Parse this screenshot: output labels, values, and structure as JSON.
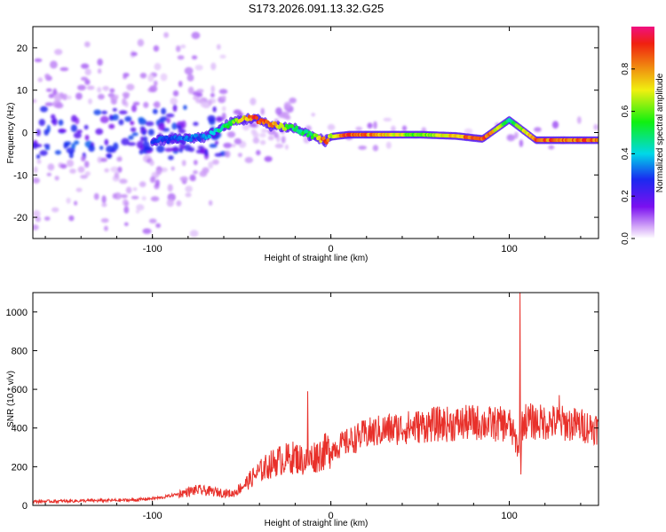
{
  "title": "S173.2026.091.13.32.G25",
  "chart_data": [
    {
      "type": "heatmap",
      "name": "spectrogram",
      "xlabel": "Height of straight line (km)",
      "ylabel": "Frequency (Hz)",
      "xlim": [
        -167,
        150
      ],
      "ylim": [
        -25,
        25
      ],
      "xticks": [
        -100,
        0,
        100
      ],
      "yticks": [
        -20,
        -10,
        0,
        10,
        20
      ],
      "colorbar": {
        "label": "Normalized spectral amplitude",
        "range": [
          0,
          1
        ],
        "ticks": [
          0.0,
          0.2,
          0.4,
          0.6,
          0.8
        ]
      },
      "signal_track": [
        {
          "x": -100,
          "freq": -2,
          "amp": 0.3
        },
        {
          "x": -70,
          "freq": -1,
          "amp": 0.35
        },
        {
          "x": -55,
          "freq": 2.5,
          "amp": 0.6
        },
        {
          "x": -43,
          "freq": 3.5,
          "amp": 0.95
        },
        {
          "x": -35,
          "freq": 1.8,
          "amp": 0.9
        },
        {
          "x": -20,
          "freq": 1,
          "amp": 0.5
        },
        {
          "x": -10,
          "freq": -1,
          "amp": 0.55
        },
        {
          "x": -3,
          "freq": -2,
          "amp": 0.95
        },
        {
          "x": 0,
          "freq": -1,
          "amp": 0.7
        },
        {
          "x": 10,
          "freq": -0.5,
          "amp": 0.95
        },
        {
          "x": 50,
          "freq": -0.5,
          "amp": 0.6
        },
        {
          "x": 70,
          "freq": -0.8,
          "amp": 0.8
        },
        {
          "x": 85,
          "freq": -1.5,
          "amp": 0.95
        },
        {
          "x": 100,
          "freq": 3,
          "amp": 0.5
        },
        {
          "x": 115,
          "freq": -1.8,
          "amp": 0.9
        },
        {
          "x": 150,
          "freq": -1.8,
          "amp": 0.9
        }
      ]
    },
    {
      "type": "line",
      "name": "snr",
      "xlabel": "Height of straight line (km)",
      "ylabel": "SNR (10 * v/v)",
      "xlim": [
        -167,
        150
      ],
      "ylim": [
        0,
        1100
      ],
      "xticks": [
        -100,
        0,
        100
      ],
      "yticks": [
        0,
        200,
        400,
        600,
        800,
        1000
      ],
      "color": "#e8302a",
      "series": [
        {
          "name": "SNR",
          "x": [
            -167,
            -150,
            -130,
            -110,
            -95,
            -85,
            -75,
            -65,
            -55,
            -48,
            -42,
            -36,
            -30,
            -25,
            -20,
            -15,
            -10,
            -5,
            0,
            5,
            10,
            20,
            30,
            40,
            50,
            60,
            70,
            80,
            90,
            100,
            105,
            108,
            115,
            125,
            135,
            150
          ],
          "y": [
            20,
            22,
            25,
            28,
            40,
            60,
            80,
            70,
            60,
            110,
            160,
            200,
            230,
            240,
            250,
            230,
            250,
            270,
            290,
            310,
            330,
            370,
            390,
            400,
            410,
            420,
            420,
            430,
            420,
            420,
            300,
            440,
            430,
            430,
            420,
            400
          ],
          "spikes": [
            {
              "x": -13,
              "y": 590
            },
            {
              "x": 106,
              "y": 1100
            },
            {
              "x": 106.5,
              "y": 160
            },
            {
              "x": 128,
              "y": 570
            }
          ]
        }
      ]
    }
  ]
}
